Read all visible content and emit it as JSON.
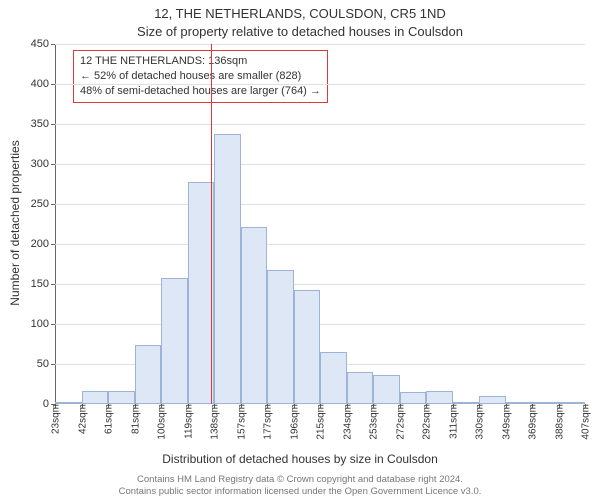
{
  "title_line1": "12, THE NETHERLANDS, COULSDON, CR5 1ND",
  "title_line2": "Size of property relative to detached houses in Coulsdon",
  "ylabel": "Number of detached properties",
  "xlabel": "Distribution of detached houses by size in Coulsdon",
  "footer_line1": "Contains HM Land Registry data © Crown copyright and database right 2024.",
  "footer_line2": "Contains public sector information licensed under the Open Government Licence v3.0.",
  "annotation": {
    "line1": "12 THE NETHERLANDS: 136sqm",
    "line2": "← 52% of detached houses are smaller (828)",
    "line3": "48% of semi-detached houses are larger (764) →"
  },
  "chart": {
    "type": "histogram",
    "ylim": [
      0,
      450
    ],
    "ytick_step": 50,
    "background_color": "#ffffff",
    "grid_color": "#e0e0e0",
    "axis_color": "#666666",
    "bar_fill": "#dde7f6",
    "bar_border": "#9db4d8",
    "marker_color": "#d93a3a",
    "marker_x_value": 136,
    "x_start": 23,
    "bin_width": 19.23,
    "x_tick_labels": [
      "23sqm",
      "42sqm",
      "61sqm",
      "81sqm",
      "100sqm",
      "119sqm",
      "138sqm",
      "157sqm",
      "177sqm",
      "196sqm",
      "215sqm",
      "234sqm",
      "253sqm",
      "272sqm",
      "292sqm",
      "311sqm",
      "330sqm",
      "349sqm",
      "369sqm",
      "388sqm",
      "407sqm"
    ],
    "values": [
      0,
      16,
      16,
      74,
      158,
      277,
      338,
      221,
      168,
      143,
      65,
      40,
      36,
      15,
      16,
      2,
      10,
      1,
      1,
      2
    ],
    "title_fontsize": 13,
    "label_fontsize": 12,
    "tick_fontsize": 11,
    "xtick_fontsize": 10
  }
}
